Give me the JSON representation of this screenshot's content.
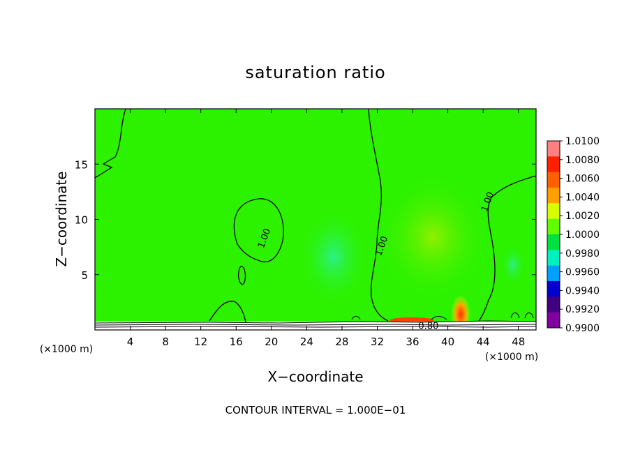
{
  "chart_data": {
    "type": "heatmap",
    "title": "saturation ratio",
    "xlabel": "X−coordinate",
    "ylabel": "Z−coordinate",
    "x_unit_left": "(×1000 m)",
    "x_unit_right": "(×1000 m)",
    "xlim": [
      0,
      50
    ],
    "ylim": [
      0,
      20
    ],
    "x_ticks": [
      4,
      8,
      12,
      16,
      20,
      24,
      28,
      32,
      36,
      40,
      44,
      48
    ],
    "y_ticks": [
      5,
      10,
      15
    ],
    "footer": "CONTOUR INTERVAL = 1.000E−01",
    "colorbar": {
      "levels": [
        "1.0100",
        "1.0080",
        "1.0060",
        "1.0040",
        "1.0020",
        "1.0000",
        "0.9980",
        "0.9960",
        "0.9940",
        "0.9920",
        "0.9900"
      ],
      "colors": [
        "#ff8080",
        "#ff2000",
        "#ff6000",
        "#ffa000",
        "#d8ff00",
        "#60ff00",
        "#00e040",
        "#00f0c0",
        "#00a0ff",
        "#0000d0",
        "#400080",
        "#8000a0"
      ],
      "colors_order": "top-to-bottom"
    },
    "contour_labels": [
      {
        "text": "1.00",
        "x": 19.5,
        "y": 8.2
      },
      {
        "text": "1.00",
        "x": 32.8,
        "y": 7.5
      },
      {
        "text": "1.00",
        "x": 44.8,
        "y": 11.5
      },
      {
        "text": "0.80",
        "x": 37.8,
        "y": 0.1
      }
    ],
    "background_color": "#2cf200"
  }
}
